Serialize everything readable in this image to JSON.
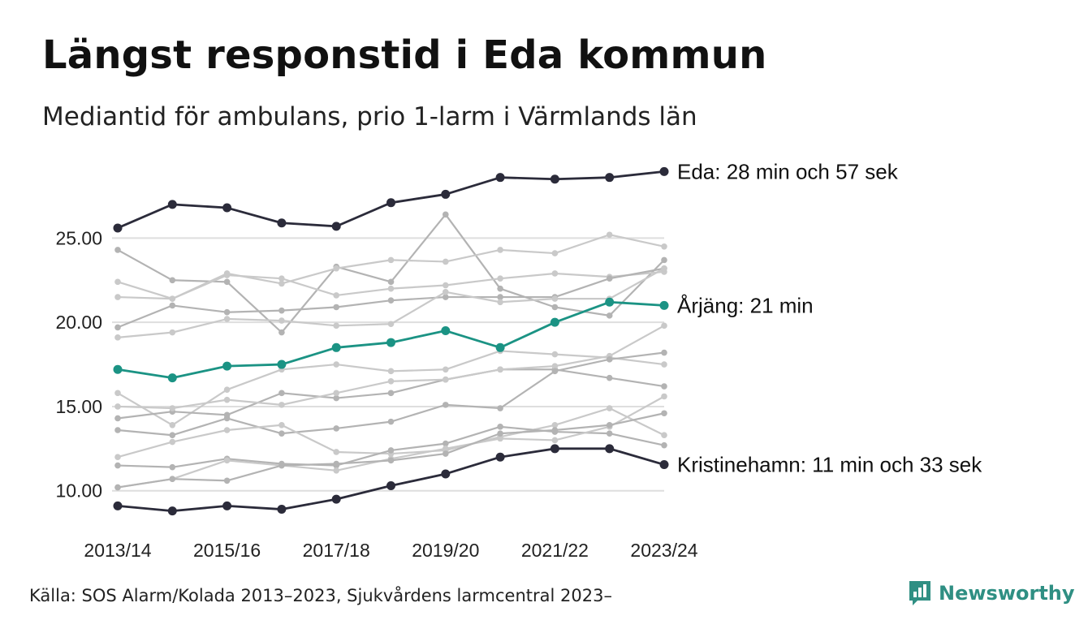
{
  "title": "Längst responstid i Eda kommun",
  "subtitle": "Mediantid för ambulans, prio 1-larm i Värmlands län",
  "source": "Källa: SOS Alarm/Kolada 2013–2023, Sjukvårdens larmcentral 2023–",
  "brand": {
    "name": "Newsworthy",
    "icon": "newsworthy-logo-icon",
    "color": "#2f8f83"
  },
  "chart_data": {
    "type": "line",
    "x": [
      "2013/14",
      "2014/15",
      "2015/16",
      "2016/17",
      "2017/18",
      "2018/19",
      "2019/20",
      "2020/21",
      "2021/22",
      "2022/23",
      "2023/24"
    ],
    "x_tick_labels": [
      "2013/14",
      "2015/16",
      "2017/18",
      "2019/20",
      "2021/22",
      "2023/24"
    ],
    "y_ticks": [
      10,
      15,
      20,
      25
    ],
    "y_tick_labels": [
      "10.00",
      "15.00",
      "20.00",
      "25.00"
    ],
    "ylim": [
      8.3,
      29.5
    ],
    "grid": "horizontal",
    "colors": {
      "highlight_dark": "#2b2b3a",
      "highlight_teal": "#1b9384",
      "others": [
        "#b3b3b3",
        "#c9c9c9"
      ]
    },
    "highlighted": [
      {
        "name": "Eda",
        "label": "Eda: 28 min och 57 sek",
        "color": "#2b2b3a",
        "values": [
          25.6,
          27.0,
          26.8,
          25.9,
          25.7,
          27.1,
          27.6,
          28.6,
          28.5,
          28.6,
          28.95
        ]
      },
      {
        "name": "Årjäng",
        "label": "Årjäng: 21 min",
        "color": "#1b9384",
        "values": [
          17.2,
          16.7,
          17.4,
          17.5,
          18.5,
          18.8,
          19.5,
          18.5,
          20.0,
          21.2,
          21.0
        ]
      },
      {
        "name": "Kristinehamn",
        "label": "Kristinehamn: 11 min och 33 sek",
        "color": "#2b2b3a",
        "values": [
          9.1,
          8.8,
          9.1,
          8.9,
          9.5,
          10.3,
          11.0,
          12.0,
          12.5,
          12.5,
          11.55
        ]
      }
    ],
    "other_series": [
      {
        "color": "#b3b3b3",
        "values": [
          24.3,
          22.5,
          22.4,
          19.4,
          23.3,
          22.4,
          26.4,
          22.0,
          20.9,
          20.4,
          23.7
        ]
      },
      {
        "color": "#c9c9c9",
        "values": [
          22.4,
          21.4,
          22.9,
          22.3,
          23.2,
          23.7,
          23.6,
          24.3,
          24.1,
          25.2,
          24.5
        ]
      },
      {
        "color": "#c9c9c9",
        "values": [
          21.5,
          21.4,
          22.8,
          22.6,
          21.6,
          22.0,
          22.2,
          22.6,
          22.9,
          22.7,
          23.0
        ]
      },
      {
        "color": "#b3b3b3",
        "values": [
          19.7,
          21.0,
          20.6,
          20.7,
          20.9,
          21.3,
          21.5,
          21.5,
          21.5,
          22.6,
          23.2
        ]
      },
      {
        "color": "#c9c9c9",
        "values": [
          19.1,
          19.4,
          20.2,
          20.1,
          19.8,
          19.9,
          21.8,
          21.2,
          21.4,
          21.4,
          23.2
        ]
      },
      {
        "color": "#c9c9c9",
        "values": [
          15.8,
          13.9,
          16.0,
          17.2,
          17.5,
          17.1,
          17.2,
          18.3,
          18.1,
          17.9,
          17.5
        ]
      },
      {
        "color": "#b3b3b3",
        "values": [
          14.3,
          14.7,
          14.5,
          15.8,
          15.5,
          15.8,
          16.6,
          17.2,
          17.2,
          16.7,
          16.2
        ]
      },
      {
        "color": "#c9c9c9",
        "values": [
          15.0,
          14.9,
          15.4,
          15.1,
          15.8,
          16.5,
          16.6,
          17.2,
          17.4,
          18.0,
          19.8
        ]
      },
      {
        "color": "#b3b3b3",
        "values": [
          13.6,
          13.3,
          14.3,
          13.4,
          13.7,
          14.1,
          15.1,
          14.9,
          17.1,
          17.8,
          18.2
        ]
      },
      {
        "color": "#c9c9c9",
        "values": [
          12.0,
          12.9,
          13.6,
          13.9,
          12.3,
          12.2,
          12.4,
          13.2,
          13.9,
          14.9,
          13.3
        ]
      },
      {
        "color": "#b3b3b3",
        "values": [
          11.5,
          11.4,
          11.9,
          11.6,
          11.5,
          12.4,
          12.8,
          13.8,
          13.5,
          13.4,
          12.7
        ]
      },
      {
        "color": "#c9c9c9",
        "values": [
          10.2,
          10.7,
          11.8,
          11.5,
          11.2,
          11.9,
          12.5,
          13.1,
          13.0,
          13.8,
          15.6
        ]
      },
      {
        "color": "#b3b3b3",
        "values": [
          10.2,
          10.7,
          10.6,
          11.5,
          11.6,
          11.8,
          12.2,
          13.4,
          13.6,
          13.9,
          14.6
        ]
      }
    ]
  }
}
